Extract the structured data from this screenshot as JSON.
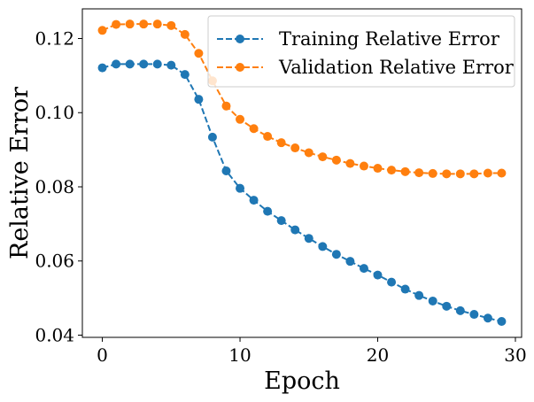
{
  "chart_data": {
    "type": "line",
    "title": "",
    "xlabel": "Epoch",
    "ylabel": "Relative Error",
    "xlim": [
      -1.45,
      30.45
    ],
    "ylim": [
      0.0394,
      0.128
    ],
    "xticks": [
      0,
      10,
      20,
      30
    ],
    "xtick_labels": [
      "0",
      "10",
      "20",
      "30"
    ],
    "yticks": [
      0.04,
      0.06,
      0.08,
      0.1,
      0.12
    ],
    "ytick_labels": [
      "0.04",
      "0.06",
      "0.08",
      "0.10",
      "0.12"
    ],
    "grid": false,
    "legend_position": "top-right",
    "x": [
      0,
      1,
      2,
      3,
      4,
      5,
      6,
      7,
      8,
      9,
      10,
      11,
      12,
      13,
      14,
      15,
      16,
      17,
      18,
      19,
      20,
      21,
      22,
      23,
      24,
      25,
      26,
      27,
      28,
      29
    ],
    "series": [
      {
        "name": "Training Relative Error",
        "color": "#1f77b4",
        "marker": "circle",
        "line_style": "dashed",
        "values": [
          0.1121,
          0.1131,
          0.1131,
          0.1131,
          0.1131,
          0.1128,
          0.1103,
          0.1036,
          0.0934,
          0.0843,
          0.0796,
          0.0764,
          0.0734,
          0.0709,
          0.0684,
          0.0661,
          0.0639,
          0.0618,
          0.0599,
          0.058,
          0.0562,
          0.0543,
          0.0524,
          0.0507,
          0.0492,
          0.0478,
          0.0466,
          0.0456,
          0.0446,
          0.0437
        ]
      },
      {
        "name": "Validation Relative Error",
        "color": "#ff7f0e",
        "marker": "circle",
        "line_style": "dashed",
        "values": [
          0.1222,
          0.1238,
          0.1239,
          0.1239,
          0.1239,
          0.1235,
          0.1211,
          0.116,
          0.1086,
          0.1018,
          0.0982,
          0.0957,
          0.0936,
          0.0919,
          0.0905,
          0.0892,
          0.0881,
          0.0872,
          0.0863,
          0.0856,
          0.085,
          0.0845,
          0.0841,
          0.0838,
          0.0836,
          0.0835,
          0.0835,
          0.0835,
          0.0837,
          0.0837
        ]
      }
    ]
  }
}
